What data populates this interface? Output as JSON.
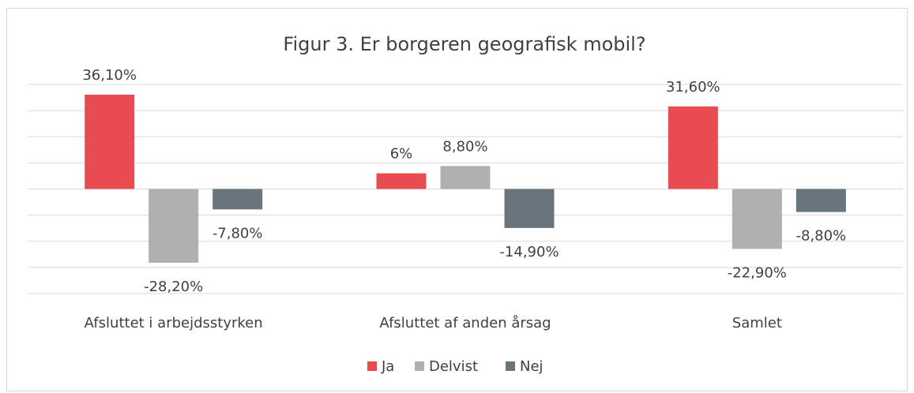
{
  "chart_data": {
    "type": "bar",
    "title": "Figur 3. Er borgeren geografisk mobil?",
    "categories": [
      "Afsluttet i arbejdsstyrken",
      "Afsluttet af anden årsag",
      "Samlet"
    ],
    "series": [
      {
        "name": "Ja",
        "color": "#e84c50",
        "values": [
          36.1,
          6,
          31.6
        ],
        "value_labels": [
          "36,10%",
          "6%",
          "31,60%"
        ]
      },
      {
        "name": "Delvist",
        "color": "#b0b0b0",
        "values": [
          -28.2,
          8.8,
          -22.9
        ],
        "value_labels": [
          "-28,20%",
          "8,80%",
          "-22,90%"
        ]
      },
      {
        "name": "Nej",
        "color": "#68757d",
        "values": [
          -7.8,
          -14.9,
          -8.8
        ],
        "value_labels": [
          "-7,80%",
          "-14,90%",
          "-8,80%"
        ]
      }
    ],
    "ylim": [
      -40,
      40
    ],
    "yticks": [
      -40,
      -30,
      -20,
      -10,
      0,
      10,
      20,
      30,
      40
    ],
    "grid": true,
    "legend": "bottom"
  }
}
